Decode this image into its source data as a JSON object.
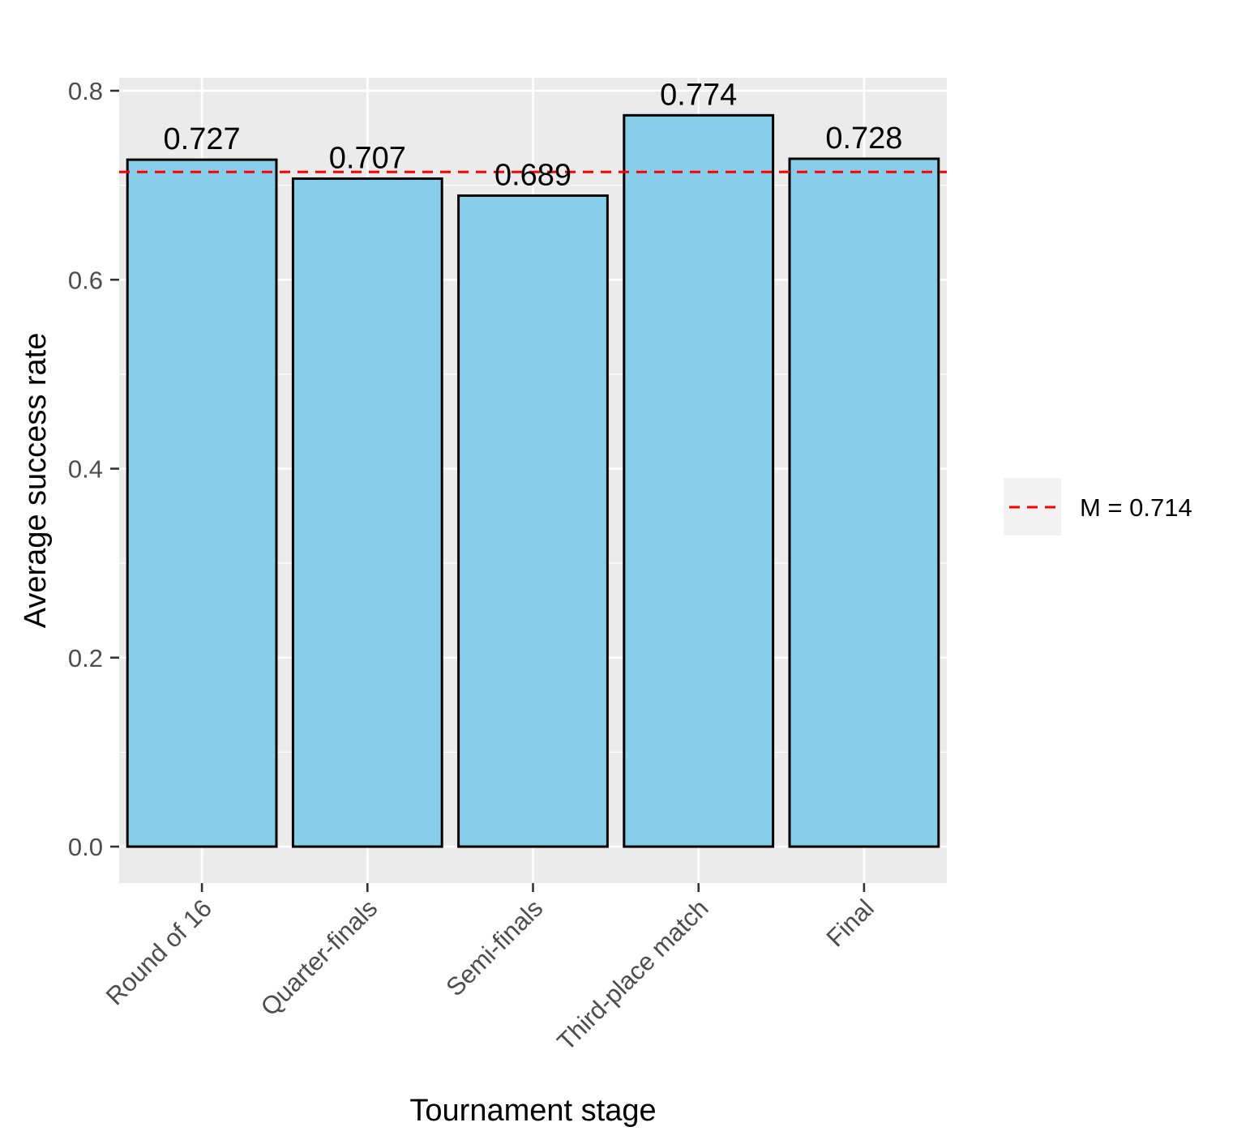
{
  "chart_data": {
    "type": "bar",
    "title": "",
    "xlabel": "Tournament stage",
    "ylabel": "Average success rate",
    "categories": [
      "Round of 16",
      "Quarter-finals",
      "Semi-finals",
      "Third-place match",
      "Final"
    ],
    "values": [
      0.727,
      0.707,
      0.689,
      0.774,
      0.728
    ],
    "value_labels": [
      "0.727",
      "0.707",
      "0.689",
      "0.774",
      "0.728"
    ],
    "ylim": [
      -0.038,
      0.81
    ],
    "yticks": [
      0.0,
      0.2,
      0.4,
      0.6,
      0.8
    ],
    "ytick_labels": [
      "0.0",
      "0.2",
      "0.4",
      "0.6",
      "0.8"
    ],
    "grid": true,
    "reference_line": {
      "value": 0.714,
      "style": "dashed",
      "color": "#ff0000"
    },
    "legend": {
      "position": "right",
      "entries": [
        {
          "label": "M = 0.714",
          "color": "#ff0000",
          "style": "dashed"
        }
      ]
    },
    "bar_fill": "#87ceeb",
    "bar_outline": "#000000",
    "panel_background": "#ebebeb"
  }
}
